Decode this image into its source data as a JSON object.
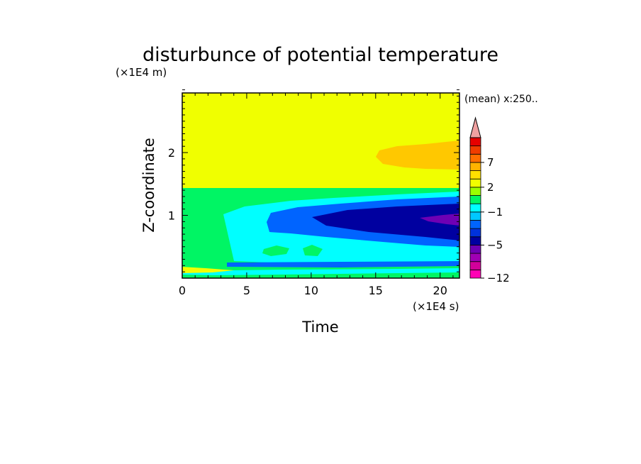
{
  "chart_data": {
    "type": "heatmap",
    "title": "disturbunce of potential temperature",
    "xlabel": "Time",
    "ylabel": "Z-coordinate",
    "x_unit": "(×1E4 s)",
    "y_unit": "(×1E4 m)",
    "annotation": "(mean) x:250..",
    "xlim": [
      0,
      21.5
    ],
    "ylim": [
      0,
      2.95
    ],
    "x_ticks": [
      0,
      5,
      10,
      15,
      20
    ],
    "y_ticks": [
      1,
      2
    ],
    "colorbar": {
      "levels": [
        -12,
        -10,
        -8,
        -6,
        -5,
        -4,
        -3,
        -2,
        -1,
        0,
        1,
        2,
        3,
        5,
        7,
        9,
        11
      ],
      "colors": [
        "#ff00b4",
        "#d2009a",
        "#a000b4",
        "#6e00b4",
        "#0000a0",
        "#0032dc",
        "#0064ff",
        "#00c8ff",
        "#00ffff",
        "#00f564",
        "#9bff00",
        "#f0ff00",
        "#ffe100",
        "#ffb400",
        "#ff6e00",
        "#f03c00",
        "#e60000",
        "#f0a0a0"
      ],
      "tick_labels": [
        "7",
        "2",
        "−1",
        "−5",
        "−12"
      ],
      "tick_values": [
        7,
        2,
        -1,
        -5,
        -12
      ]
    },
    "regions": [
      {
        "value": "0 to 1",
        "color": "#00f564",
        "description": "lower layer background below z=1.47"
      },
      {
        "value": "1 to 2",
        "color": "#f0ff00",
        "description": "upper layer above z=1.47"
      },
      {
        "value": "2 to 3",
        "color": "#ffc800",
        "description": "warm patch near z=2, t=15-21.5"
      },
      {
        "value": "-1 to 0",
        "color": "#00ffff",
        "description": "cooling wedge from t=3.5"
      },
      {
        "value": "-2 to -1",
        "color": "#0064ff",
        "description": "cooling core from t=6.5"
      },
      {
        "value": "-3 to -2",
        "color": "#0000a0",
        "description": "strongest cooling from t=10"
      },
      {
        "value": "-4 to -3",
        "color": "#6e00b4",
        "description": "minimum near z=0.95, t=18-21.5"
      }
    ]
  }
}
